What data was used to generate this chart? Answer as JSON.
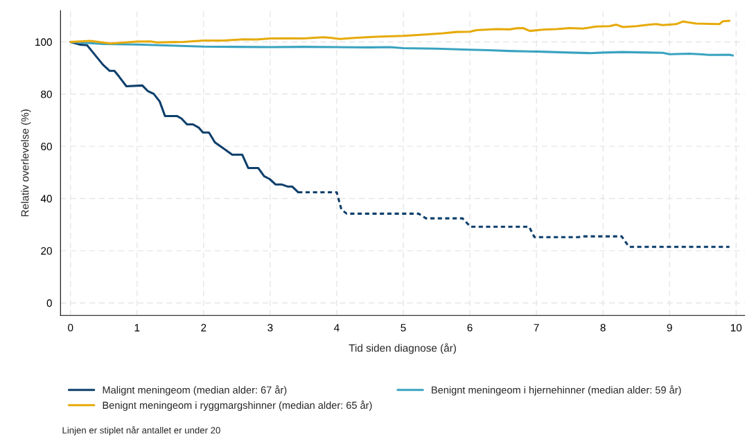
{
  "chart_data": {
    "type": "line",
    "xlabel": "Tid siden diagnose (år)",
    "ylabel": "Relativ overlevelse (%)",
    "xlim": [
      -0.15,
      10.13
    ],
    "ylim": [
      -4.8,
      112
    ],
    "xticks": [
      0,
      1,
      2,
      3,
      4,
      5,
      6,
      7,
      8,
      9,
      10
    ],
    "yticks": [
      0,
      20,
      40,
      60,
      80,
      100
    ],
    "grid": true,
    "legend": "bottom",
    "marker": "none",
    "series": [
      {
        "name": "Malignt meningeom (median alder: 67 år)",
        "color": "#0d3f6b",
        "line_style": "solid",
        "x": [
          0,
          0.15,
          0.25,
          0.49,
          0.59,
          0.66,
          0.73,
          0.84,
          1.08,
          1.16,
          1.25,
          1.34,
          1.42,
          1.6,
          1.67,
          1.75,
          1.84,
          1.93,
          1.99,
          2.08,
          2.17,
          2.27,
          2.43,
          2.58,
          2.67,
          2.82,
          2.91,
          2.99,
          3.08,
          3.17,
          3.26,
          3.33,
          3.42
        ],
        "values": [
          100,
          98.9,
          98.7,
          91.2,
          88.9,
          88.9,
          86.7,
          83.0,
          83.3,
          81.2,
          80.1,
          77.2,
          71.6,
          71.6,
          70.6,
          68.4,
          68.4,
          67.1,
          65.3,
          65.3,
          61.5,
          59.7,
          56.8,
          56.8,
          51.7,
          51.7,
          48.5,
          47.5,
          45.4,
          45.4,
          44.6,
          44.6,
          42.4
        ]
      },
      {
        "color": "#0d3f6b",
        "line_style": "dashed",
        "x": [
          3.42,
          4.0,
          4.07,
          4.15,
          5.23,
          5.34,
          5.89,
          6.01,
          6.89,
          6.97,
          7.63,
          7.7,
          8.28,
          8.39,
          9.9
        ],
        "values": [
          42.4,
          42.4,
          35.8,
          34.2,
          34.2,
          32.4,
          32.4,
          29.2,
          29.2,
          25.2,
          25.2,
          25.5,
          25.5,
          21.5,
          21.5
        ]
      },
      {
        "name": "Benignt meningeom i hjernehinner (median alder: 59 år)",
        "color": "#3aa3c0",
        "line_style": "solid",
        "x": [
          0,
          0.5,
          1.0,
          1.5,
          2.0,
          2.5,
          3.0,
          3.5,
          4.0,
          4.5,
          4.8,
          5.0,
          5.5,
          6.0,
          6.3,
          6.6,
          7.0,
          7.5,
          7.8,
          8.0,
          8.3,
          8.7,
          8.9,
          9.0,
          9.3,
          9.5,
          9.6,
          9.9,
          9.95
        ],
        "values": [
          100,
          99.2,
          99.0,
          98.6,
          98.2,
          98.1,
          98.0,
          98.1,
          98.0,
          97.9,
          98.0,
          97.6,
          97.4,
          97.0,
          96.8,
          96.5,
          96.3,
          95.9,
          95.7,
          95.9,
          96.1,
          95.9,
          95.8,
          95.3,
          95.5,
          95.2,
          95.0,
          95.1,
          94.8
        ]
      },
      {
        "name": "Benignt meningeom i ryggmargshinner (median alder: 65 år)",
        "color": "#e6aa0a",
        "line_style": "solid",
        "x": [
          0,
          0.3,
          0.6,
          1.0,
          1.2,
          1.3,
          1.7,
          2.0,
          2.3,
          2.6,
          2.8,
          3.0,
          3.3,
          3.5,
          3.8,
          3.9,
          4.05,
          4.3,
          4.6,
          5.0,
          5.3,
          5.6,
          5.8,
          6.0,
          6.1,
          6.4,
          6.6,
          6.7,
          6.8,
          6.9,
          7.1,
          7.3,
          7.5,
          7.7,
          7.9,
          8.1,
          8.2,
          8.3,
          8.5,
          8.7,
          8.8,
          8.9,
          9.1,
          9.2,
          9.4,
          9.6,
          9.75,
          9.8,
          9.9
        ],
        "values": [
          100,
          100.4,
          99.4,
          100.1,
          100.2,
          99.8,
          100,
          100.5,
          100.5,
          101.0,
          100.9,
          101.3,
          101.4,
          101.3,
          101.8,
          101.6,
          101.1,
          101.6,
          102.0,
          102.3,
          102.8,
          103.3,
          103.8,
          103.9,
          104.5,
          104.9,
          104.8,
          105.2,
          105.3,
          104.2,
          104.7,
          104.9,
          105.3,
          105.1,
          105.9,
          106.0,
          106.6,
          105.7,
          106.0,
          106.6,
          106.8,
          106.4,
          106.8,
          107.8,
          107.0,
          106.9,
          106.8,
          107.9,
          108.1
        ]
      }
    ],
    "annotations": [
      "Linjen er stiplet når antallet er under 20"
    ]
  }
}
